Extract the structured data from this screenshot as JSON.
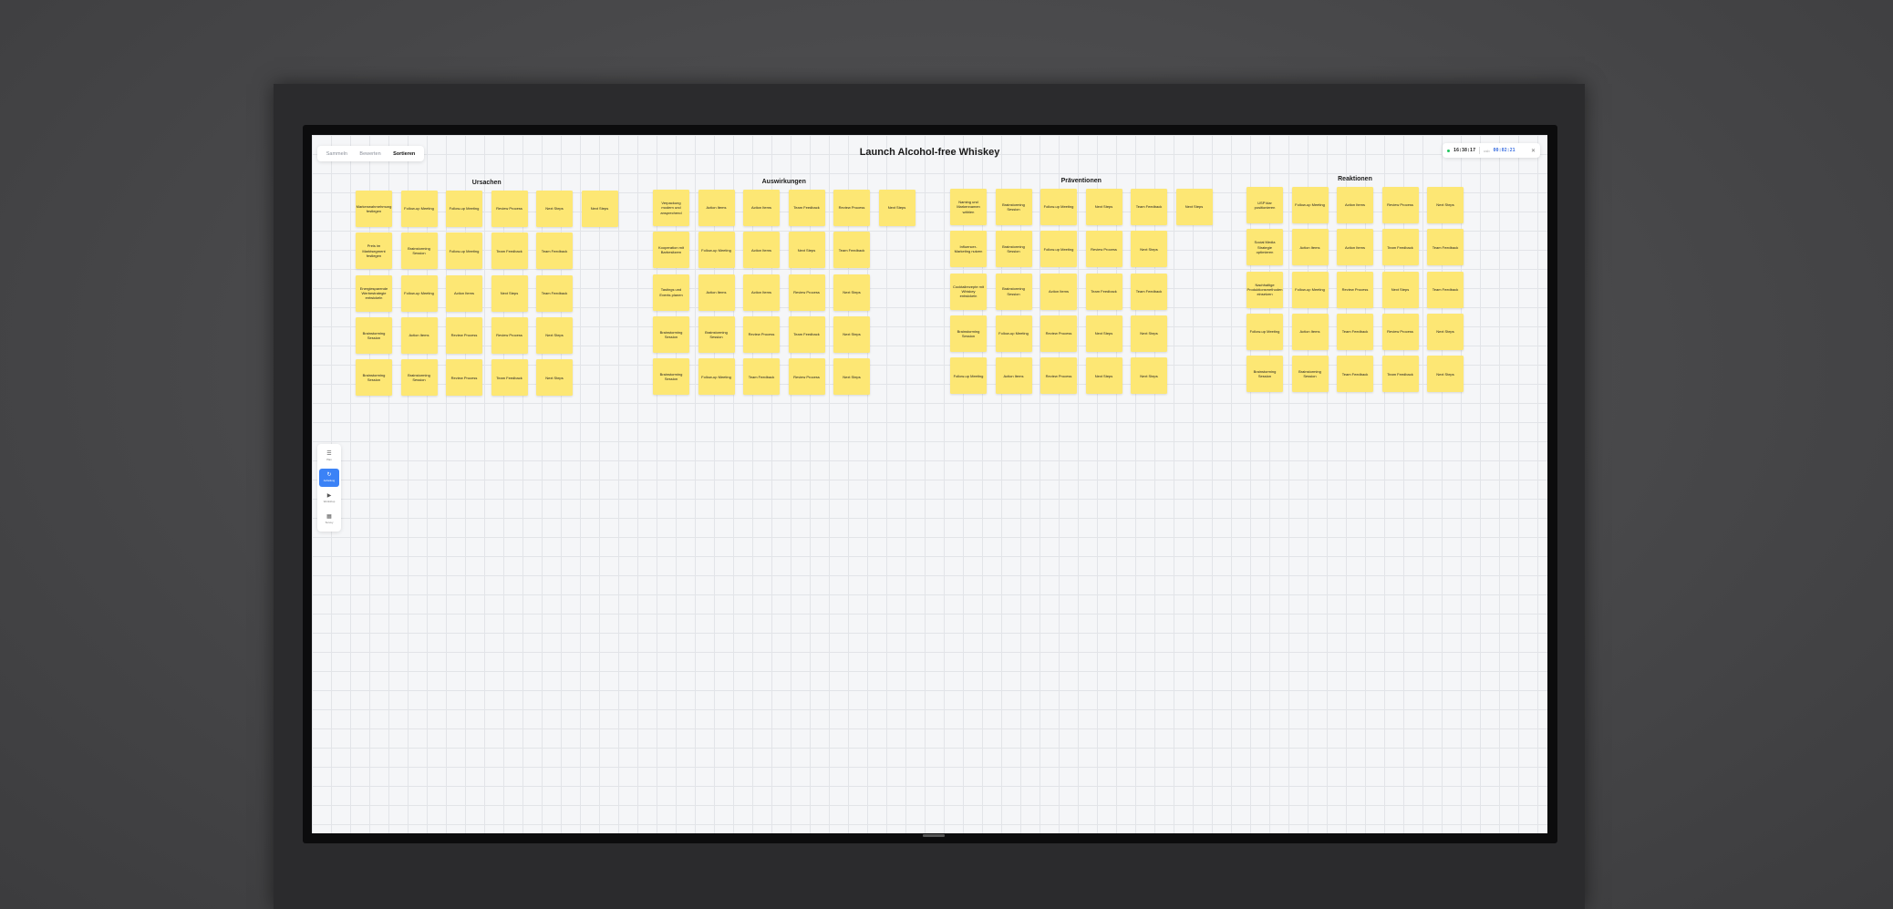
{
  "tabs": [
    {
      "label": "Sammeln",
      "active": false
    },
    {
      "label": "Bewerten",
      "active": false
    },
    {
      "label": "Sortieren",
      "active": true
    }
  ],
  "board": {
    "title": "Launch Alcohol-free Whiskey"
  },
  "timer": {
    "clock": "16:38:17",
    "elapsed_label": "usb",
    "elapsed": "00:02:21",
    "status_color": "#22c55e",
    "close_icon": "close-icon"
  },
  "toolbar": [
    {
      "label": "Plan",
      "icon": "list-icon",
      "active": false
    },
    {
      "label": "Aufteilung",
      "icon": "refresh-icon",
      "active": true
    },
    {
      "label": "Workshop",
      "icon": "presenter-icon",
      "active": false
    },
    {
      "label": "Survey",
      "icon": "grid-icon",
      "active": false
    }
  ],
  "note_color": "#fde774",
  "accent_color": "#3b82f6",
  "columns": [
    {
      "title": "Ursachen",
      "rows": [
        [
          "Markenwahrnehmung festlegen",
          "Follow-up Meeting",
          "Follow-up Meeting",
          "Review Process",
          "Next Steps",
          "Next Steps"
        ],
        [
          "Preis im Marktsegment festlegen",
          "Brainstorming Session",
          "Follow-up Meeting",
          "Team Feedback",
          "Team Feedback"
        ],
        [
          "Energiesparende Werbestrategie entwickeln",
          "Follow-up Meeting",
          "Action Items",
          "Next Steps",
          "Team Feedback"
        ],
        [
          "Brainstorming Session",
          "Action Items",
          "Review Process",
          "Review Process",
          "Next Steps"
        ],
        [
          "Brainstorming Session",
          "Brainstorming Session",
          "Review Process",
          "Team Feedback",
          "Next Steps"
        ]
      ]
    },
    {
      "title": "Auswirkungen",
      "rows": [
        [
          "Verpackung modern und ansprechend",
          "Action Items",
          "Action Items",
          "Team Feedback",
          "Review Process",
          "Next Steps"
        ],
        [
          "Kooperation mit Barbesitzern",
          "Follow-up Meeting",
          "Action Items",
          "Next Steps",
          "Team Feedback"
        ],
        [
          "Tastings und Events planen",
          "Action Items",
          "Action Items",
          "Review Process",
          "Next Steps"
        ],
        [
          "Brainstorming Session",
          "Brainstorming Session",
          "Review Process",
          "Team Feedback",
          "Next Steps"
        ],
        [
          "Brainstorming Session",
          "Follow-up Meeting",
          "Team Feedback",
          "Review Process",
          "Next Steps"
        ]
      ]
    },
    {
      "title": "Präventionen",
      "rows": [
        [
          "Naming und Markennamen wählen",
          "Brainstorming Session",
          "Follow-up Meeting",
          "Next Steps",
          "Team Feedback",
          "Next Steps"
        ],
        [
          "Influencer-Marketing nutzen",
          "Brainstorming Session",
          "Follow-up Meeting",
          "Review Process",
          "Next Steps"
        ],
        [
          "Cocktailrezepte mit Whiskey entwickeln",
          "Brainstorming Session",
          "Action Items",
          "Team Feedback",
          "Team Feedback"
        ],
        [
          "Brainstorming Session",
          "Follow-up Meeting",
          "Review Process",
          "Next Steps",
          "Next Steps"
        ],
        [
          "Follow-up Meeting",
          "Action Items",
          "Review Process",
          "Next Steps",
          "Next Steps"
        ]
      ]
    },
    {
      "title": "Reaktionen",
      "rows": [
        [
          "USP klar positionieren",
          "Follow-up Meeting",
          "Action Items",
          "Review Process",
          "Next Steps"
        ],
        [
          "Social Media Strategie optimieren",
          "Action Items",
          "Action Items",
          "Team Feedback",
          "Team Feedback"
        ],
        [
          "Nachhaltige Produktionsmethoden einsetzen",
          "Follow-up Meeting",
          "Review Process",
          "Next Steps",
          "Team Feedback"
        ],
        [
          "Follow-up Meeting",
          "Action Items",
          "Team Feedback",
          "Review Process",
          "Next Steps"
        ],
        [
          "Brainstorming Session",
          "Brainstorming Session",
          "Team Feedback",
          "Team Feedback",
          "Next Steps"
        ]
      ]
    }
  ]
}
